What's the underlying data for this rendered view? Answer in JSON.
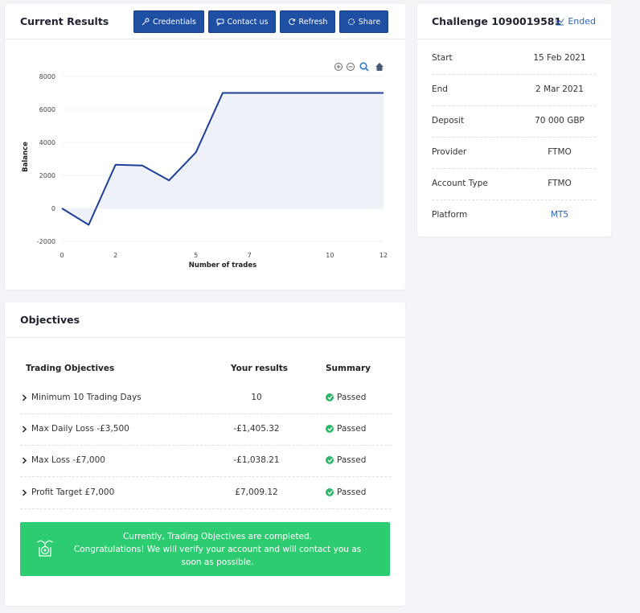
{
  "results": {
    "title": "Current Results",
    "buttons": {
      "credentials": "Credentials",
      "contact": "Contact us",
      "refresh": "Refresh",
      "share": "Share"
    }
  },
  "chart_data": {
    "type": "area",
    "xlabel": "Number of trades",
    "ylabel": "Balance",
    "x": [
      0,
      1,
      2,
      3,
      4,
      5,
      6,
      7,
      8,
      9,
      10,
      11,
      12
    ],
    "values": [
      0,
      -1000,
      2650,
      2600,
      1700,
      3400,
      7000,
      7000,
      7000,
      7000,
      7000,
      7000,
      7000
    ],
    "xlim": [
      0,
      12
    ],
    "ylim": [
      -2000,
      8000
    ],
    "yticks": [
      8000,
      6000,
      4000,
      2000,
      0,
      -2000
    ],
    "xticks": [
      0,
      2,
      5,
      7,
      10,
      12
    ],
    "grid": true,
    "line_color": "#1e3f96",
    "fill_color": "#eef1f8",
    "toolbar": [
      "zoom-in-icon",
      "zoom-out-icon",
      "magnifier-icon",
      "home-icon"
    ]
  },
  "challenge": {
    "title": "Challenge 1090019581",
    "status": "Ended",
    "rows": [
      {
        "label": "Start",
        "value": "15 Feb 2021"
      },
      {
        "label": "End",
        "value": "2 Mar 2021"
      },
      {
        "label": "Deposit",
        "value": "70 000 GBP"
      },
      {
        "label": "Provider",
        "value": "FTMO"
      },
      {
        "label": "Account Type",
        "value": "FTMO"
      },
      {
        "label": "Platform",
        "value": "MT5"
      }
    ]
  },
  "objectives": {
    "title": "Objectives",
    "headers": {
      "objective": "Trading Objectives",
      "result": "Your results",
      "summary": "Summary"
    },
    "rows": [
      {
        "name": "Minimum 10 Trading Days",
        "result": "10",
        "summary": "Passed"
      },
      {
        "name": "Max Daily Loss -£3,500",
        "result": "-£1,405.32",
        "summary": "Passed"
      },
      {
        "name": "Max Loss -£7,000",
        "result": "-£1,038.21",
        "summary": "Passed"
      },
      {
        "name": "Profit Target £7,000",
        "result": "£7,009.12",
        "summary": "Passed"
      }
    ],
    "banner": {
      "line1": "Currently, Trading Objectives are completed.",
      "line2": "Congratulations! We will verify your account and will contact you as soon as possible."
    }
  },
  "colors": {
    "accent": "#1e4fa3",
    "success": "#2ecc71",
    "link": "#2e63b8"
  }
}
